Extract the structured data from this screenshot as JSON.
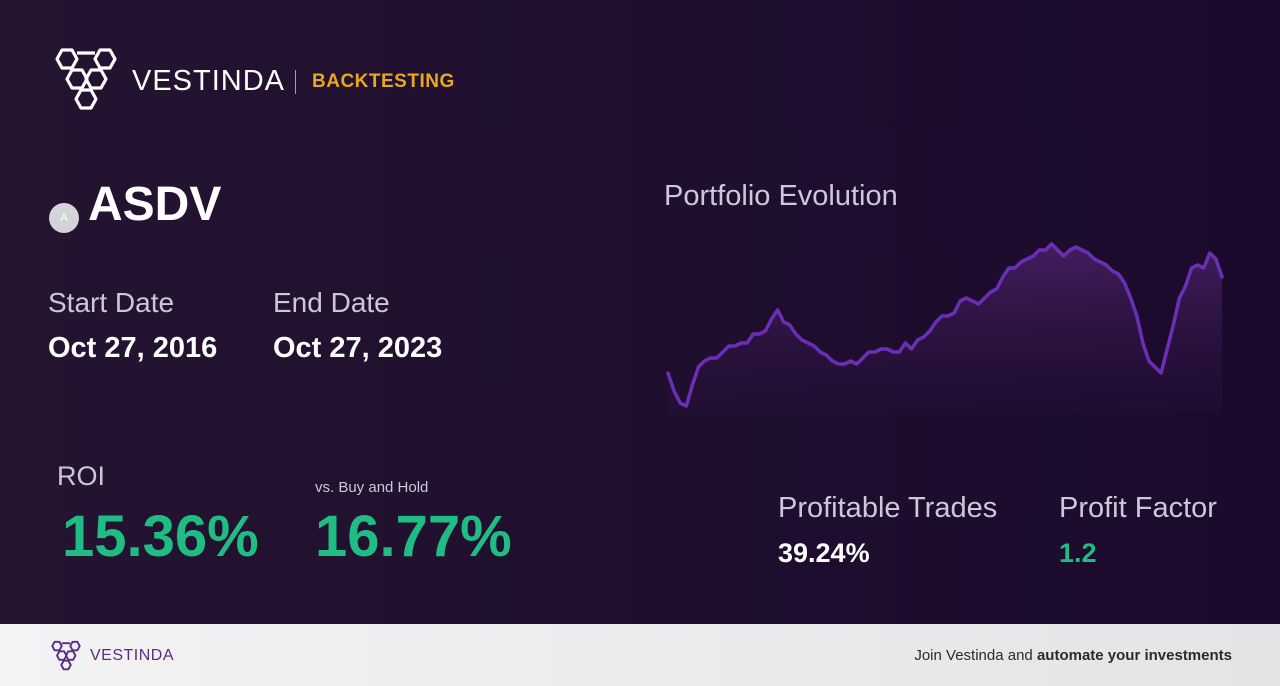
{
  "header": {
    "brand": "VESTINDA",
    "section": "BACKTESTING",
    "logo_icon": "hexagon-cluster-logo"
  },
  "asset": {
    "badge": "A",
    "ticker": "ASDV"
  },
  "dates": {
    "start_label": "Start Date",
    "start_value": "Oct 27, 2016",
    "end_label": "End Date",
    "end_value": "Oct 27, 2023"
  },
  "roi": {
    "label": "ROI",
    "value": "15.36%"
  },
  "buy_hold": {
    "label": "vs. Buy and Hold",
    "value": "16.77%"
  },
  "chart_data": {
    "type": "area",
    "title": "Portfolio Evolution",
    "xlabel": "",
    "ylabel": "",
    "grid": false,
    "legend": "none",
    "line_color": "#6b2fb5",
    "values": [
      50,
      44,
      40,
      39,
      46,
      52,
      54,
      55,
      55,
      57,
      59,
      59,
      60,
      60,
      63,
      63,
      64,
      68,
      71,
      67,
      66,
      63,
      61,
      60,
      59,
      57,
      56,
      54,
      53,
      53,
      54,
      53,
      55,
      57,
      57,
      58,
      58,
      57,
      57,
      60,
      58,
      61,
      62,
      64,
      67,
      69,
      69,
      70,
      74,
      75,
      74,
      73,
      75,
      77,
      78,
      82,
      85,
      85,
      87,
      88,
      89,
      91,
      91,
      93,
      91,
      89,
      91,
      92,
      91,
      90,
      88,
      87,
      86,
      84,
      83,
      80,
      75,
      69,
      60,
      54,
      52,
      50,
      58,
      66,
      75,
      79,
      85,
      86,
      85,
      90,
      88,
      82
    ]
  },
  "stats": {
    "profitable_label": "Profitable Trades",
    "profitable_value": "39.24%",
    "factor_label": "Profit Factor",
    "factor_value": "1.2"
  },
  "footer": {
    "brand": "VESTINDA",
    "cta_prefix": "Join Vestinda and",
    "cta_bold": "automate your investments"
  },
  "colors": {
    "accent": "#e6a81e",
    "positive": "#1fbd84",
    "chart_line": "#6b2fb5",
    "background": "#1f0e2e"
  }
}
